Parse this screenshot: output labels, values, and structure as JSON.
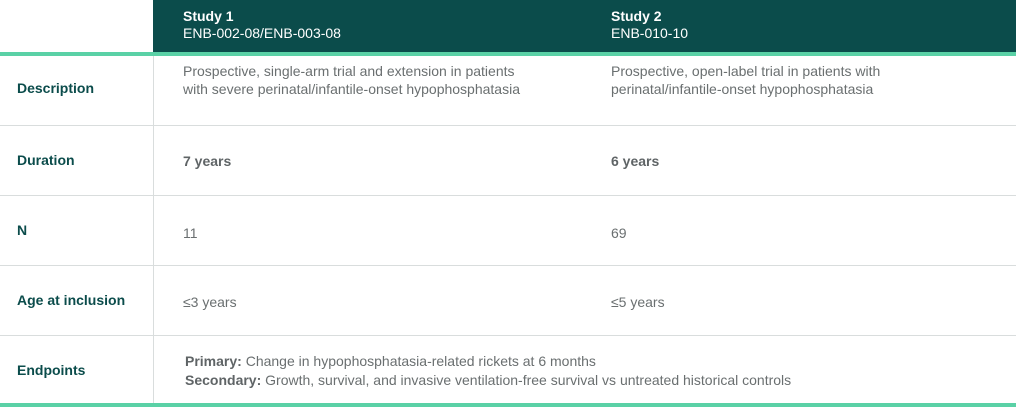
{
  "header": {
    "study1": {
      "title": "Study 1",
      "subtitle": "ENB-002-08/ENB-003-08"
    },
    "study2": {
      "title": "Study 2",
      "subtitle": "ENB-010-10"
    }
  },
  "rows": {
    "description": {
      "label": "Description",
      "study1": "Prospective, single-arm trial and extension in patients with severe perinatal/infantile-onset hypophosphatasia",
      "study2": "Prospective, open-label trial in patients with perinatal/infantile-onset hypophosphatasia"
    },
    "duration": {
      "label": "Duration",
      "study1": "7 years",
      "study2": "6 years"
    },
    "n": {
      "label": "N",
      "study1": "11",
      "study2": "69"
    },
    "age": {
      "label": "Age at inclusion",
      "study1": "≤3 years",
      "study2": "≤5 years"
    },
    "endpoints": {
      "label": "Endpoints",
      "primary_label": "Primary:",
      "primary_text": "Change in hypophosphatasia-related rickets at 6 months",
      "secondary_label": "Secondary:",
      "secondary_text": "Growth, survival, and invasive ventilation-free survival vs untreated historical controls"
    }
  },
  "colors": {
    "header_bg": "#0b4c4b",
    "accent_rule": "#5ad1a6",
    "label_text": "#0b4c4b",
    "body_text": "#6a6f70"
  }
}
